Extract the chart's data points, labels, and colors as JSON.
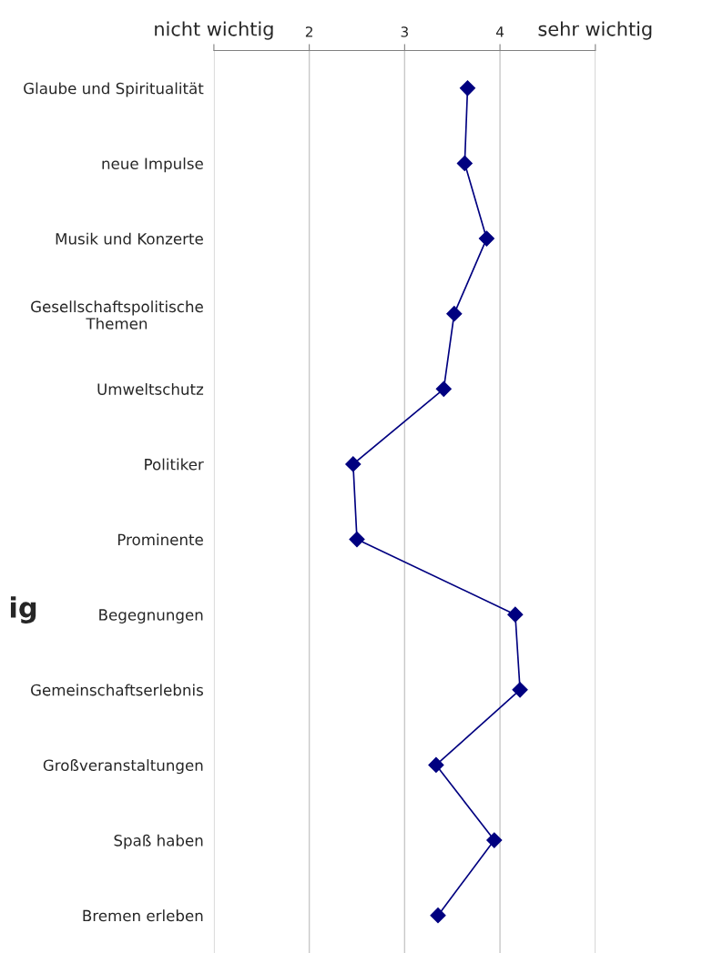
{
  "chart_data": {
    "type": "line",
    "orientation": "horizontal",
    "categories": [
      "Glaube und Spiritualität",
      "neue Impulse",
      "Musik und Konzerte",
      "Gesellschaftspolitische\nThemen",
      "Umweltschutz",
      "Politiker",
      "Prominente",
      "Begegnungen",
      "Gemeinschaftserlebnis",
      "Großveranstaltungen",
      "Spaß haben",
      "Bremen erleben"
    ],
    "series": [
      {
        "color": "#000080",
        "values": [
          3.66,
          3.63,
          3.86,
          3.52,
          3.41,
          2.46,
          2.5,
          4.16,
          4.21,
          3.33,
          3.94,
          3.35
        ]
      }
    ],
    "xlim": [
      1,
      5
    ],
    "xticks": [
      {
        "value": 1,
        "label": "nicht wichtig"
      },
      2,
      3,
      4,
      {
        "value": 5,
        "label": "sehr wichtig"
      }
    ],
    "grid": "x",
    "marker": "diamond",
    "line_style": "solid",
    "annotations": [
      "ig"
    ]
  }
}
